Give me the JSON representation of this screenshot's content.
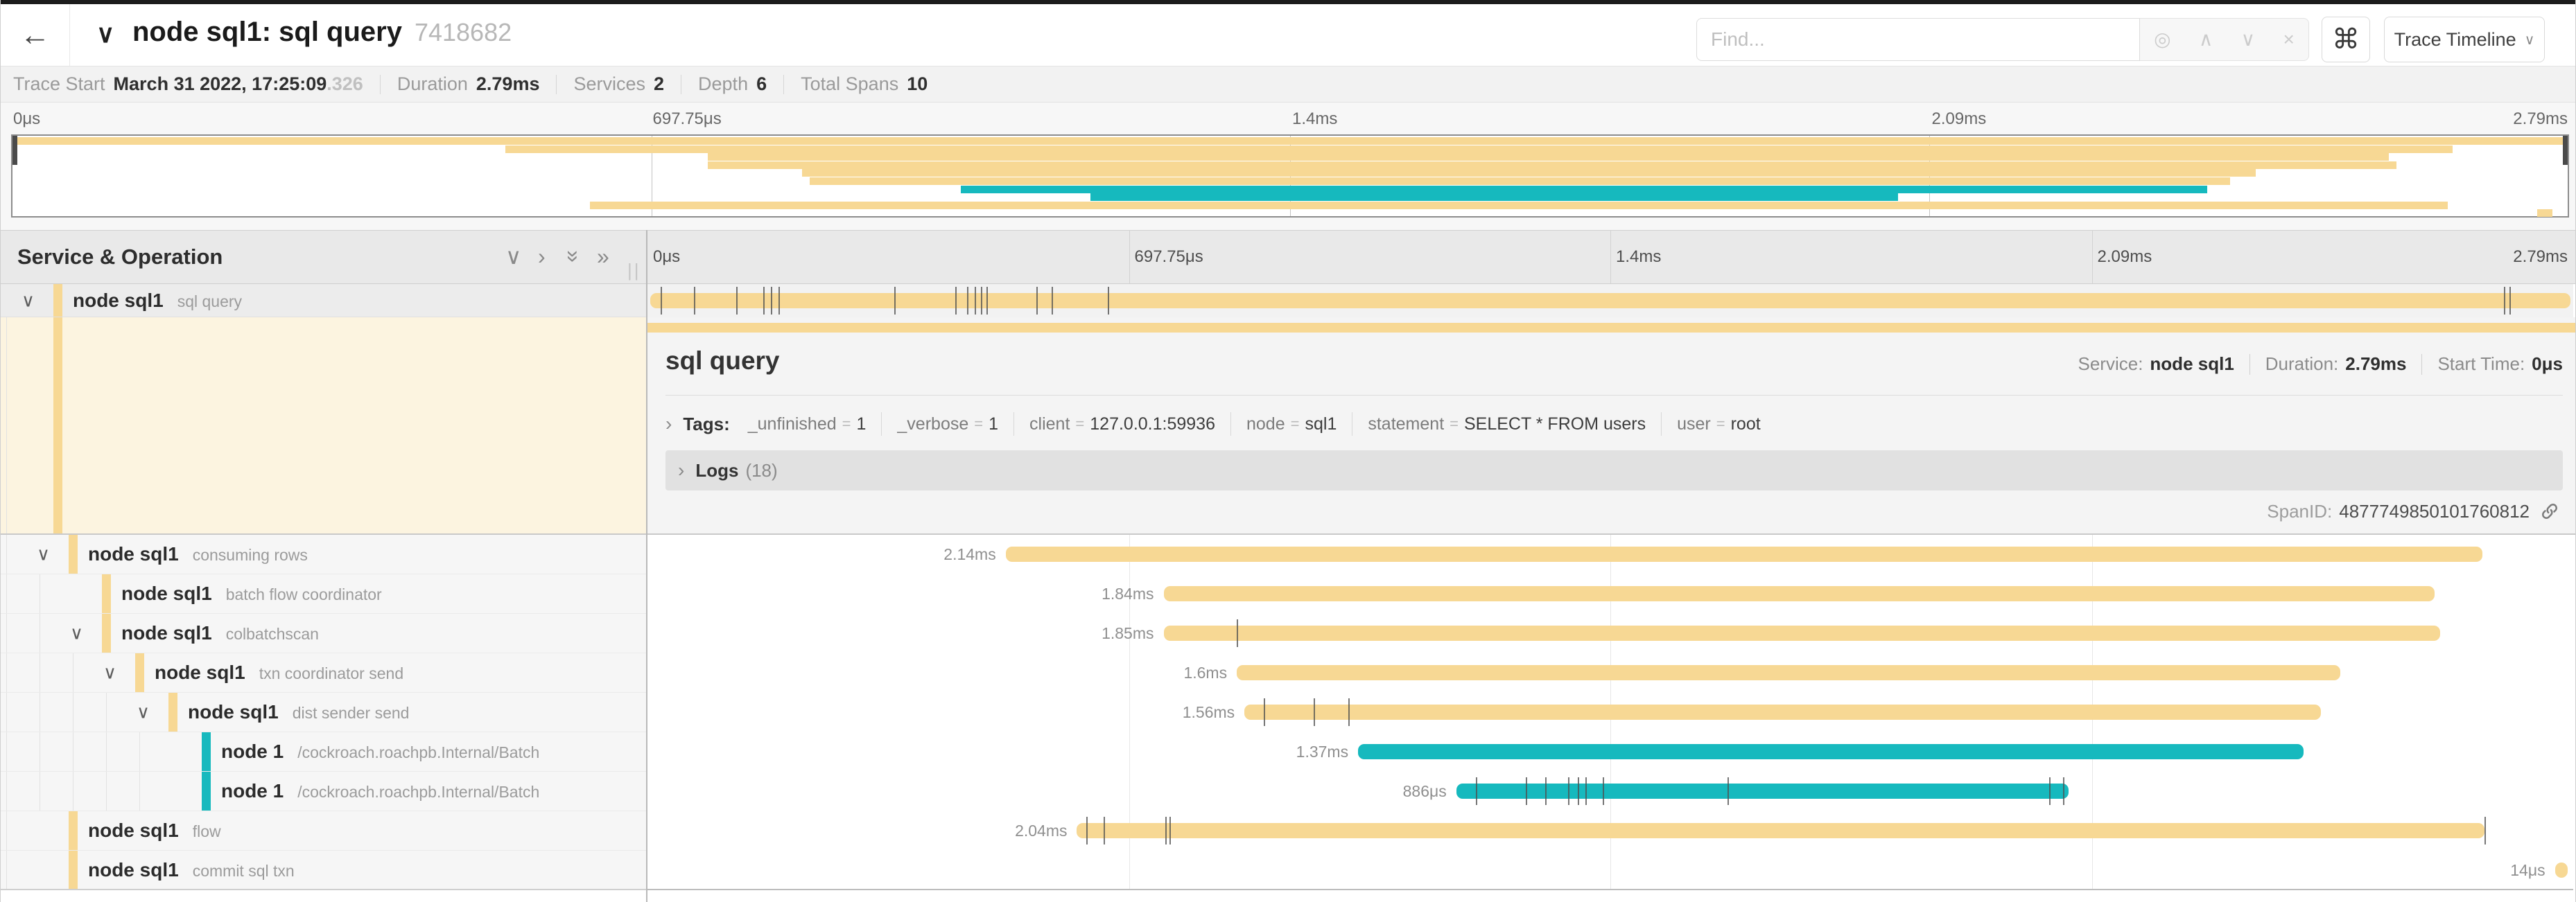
{
  "header": {
    "back_icon": "←",
    "collapser_icon": "∨",
    "title": "node sql1: sql query",
    "trace_id": "7418682",
    "find": {
      "placeholder": "Find...",
      "tool_icons": [
        "◎",
        "∧",
        "∨",
        "×"
      ]
    },
    "shortcut_icon": "⌘",
    "view_button": {
      "label": "Trace Timeline",
      "caret": "∨"
    }
  },
  "summary": {
    "items": [
      {
        "label": "Trace Start",
        "value": "March 31 2022, 17:25:09",
        "suffix": ".326"
      },
      {
        "label": "Duration",
        "value": "2.79ms"
      },
      {
        "label": "Services",
        "value": "2"
      },
      {
        "label": "Depth",
        "value": "6"
      },
      {
        "label": "Total Spans",
        "value": "10"
      }
    ]
  },
  "timeline": {
    "ticks": [
      {
        "label": "0μs",
        "pct": 0
      },
      {
        "label": "697.75μs",
        "pct": 25
      },
      {
        "label": "1.4ms",
        "pct": 50
      },
      {
        "label": "2.09ms",
        "pct": 75
      },
      {
        "label": "2.79ms",
        "pct": 100
      }
    ]
  },
  "minimap": {
    "rows": [
      {
        "start": 0,
        "end": 100,
        "color": "yellow"
      },
      {
        "start": 19.3,
        "end": 95.5,
        "color": "yellow"
      },
      {
        "start": 27.2,
        "end": 93.0,
        "color": "yellow"
      },
      {
        "start": 27.2,
        "end": 93.3,
        "color": "yellow"
      },
      {
        "start": 30.9,
        "end": 87.8,
        "color": "yellow"
      },
      {
        "start": 31.2,
        "end": 86.8,
        "color": "yellow"
      },
      {
        "start": 37.1,
        "end": 85.9,
        "color": "teal"
      },
      {
        "start": 42.2,
        "end": 73.8,
        "color": "teal"
      },
      {
        "start": 22.6,
        "end": 95.3,
        "color": "yellow"
      },
      {
        "start": 98.8,
        "end": 99.4,
        "color": "yellow"
      }
    ]
  },
  "left_panel": {
    "title": "Service & Operation",
    "collapse_icons": [
      "∨",
      "›",
      "»",
      "»"
    ],
    "grip": "||"
  },
  "spans": [
    {
      "service": "node sql1",
      "operation": "sql query",
      "depth": 0,
      "color": "yellow",
      "expandable": true,
      "selected": true,
      "duration_label": "",
      "bar": {
        "start": 0.15,
        "width": 99.7
      },
      "ticks": [
        0.7,
        2.4,
        4.6,
        6.0,
        6.4,
        6.8,
        12.8,
        16.0,
        16.6,
        17.0,
        17.3,
        17.6,
        20.2,
        21.0,
        23.9,
        96.4,
        96.7
      ]
    },
    {
      "service": "node sql1",
      "operation": "consuming rows",
      "depth": 1,
      "color": "yellow",
      "expandable": true,
      "duration_label": "2.14ms",
      "bar": {
        "start": 18.6,
        "width": 76.7
      },
      "ticks": []
    },
    {
      "service": "node sql1",
      "operation": "batch flow coordinator",
      "depth": 2,
      "color": "yellow",
      "expandable": false,
      "duration_label": "1.84ms",
      "bar": {
        "start": 26.8,
        "width": 66.0
      },
      "ticks": []
    },
    {
      "service": "node sql1",
      "operation": "colbatchscan",
      "depth": 2,
      "color": "yellow",
      "expandable": true,
      "duration_label": "1.85ms",
      "bar": {
        "start": 26.8,
        "width": 66.3
      },
      "ticks": [
        30.6
      ]
    },
    {
      "service": "node sql1",
      "operation": "txn coordinator send",
      "depth": 3,
      "color": "yellow",
      "expandable": true,
      "duration_label": "1.6ms",
      "bar": {
        "start": 30.6,
        "width": 57.3
      },
      "ticks": []
    },
    {
      "service": "node sql1",
      "operation": "dist sender send",
      "depth": 4,
      "color": "yellow",
      "expandable": true,
      "duration_label": "1.56ms",
      "bar": {
        "start": 31.0,
        "width": 55.9
      },
      "ticks": [
        32.0,
        34.6,
        36.4
      ]
    },
    {
      "service": "node 1",
      "operation": "/cockroach.roachpb.Internal/Batch",
      "depth": 5,
      "color": "teal",
      "expandable": false,
      "duration_label": "1.37ms",
      "bar": {
        "start": 36.9,
        "width": 49.1
      },
      "ticks": []
    },
    {
      "service": "node 1",
      "operation": "/cockroach.roachpb.Internal/Batch",
      "depth": 5,
      "color": "teal",
      "expandable": false,
      "duration_label": "886μs",
      "bar": {
        "start": 42.0,
        "width": 31.8
      },
      "ticks": [
        43.0,
        45.6,
        46.6,
        47.8,
        48.3,
        48.7,
        49.6,
        56.1,
        72.8,
        73.5
      ]
    },
    {
      "service": "node sql1",
      "operation": "flow",
      "depth": 1,
      "color": "yellow",
      "expandable": false,
      "duration_label": "2.04ms",
      "bar": {
        "start": 22.3,
        "width": 73.1
      },
      "ticks": [
        22.8,
        23.7,
        26.9,
        27.1,
        95.4
      ]
    },
    {
      "service": "node sql1",
      "operation": "commit sql txn",
      "depth": 1,
      "color": "yellow",
      "expandable": false,
      "duration_label": "14μs",
      "bar": {
        "start": 99.05,
        "width": 0.65
      },
      "ticks": []
    }
  ],
  "detail": {
    "title": "sql query",
    "meta": [
      {
        "label": "Service:",
        "value": "node sql1"
      },
      {
        "label": "Duration:",
        "value": "2.79ms"
      },
      {
        "label": "Start Time:",
        "value": "0μs"
      }
    ],
    "tags_title": "Tags:",
    "tags": [
      {
        "key": "_unfinished",
        "value": "1"
      },
      {
        "key": "_verbose",
        "value": "1"
      },
      {
        "key": "client",
        "value": "127.0.0.1:59936"
      },
      {
        "key": "node",
        "value": "sql1"
      },
      {
        "key": "statement",
        "value": "SELECT * FROM users"
      },
      {
        "key": "user",
        "value": "root"
      }
    ],
    "logs_title": "Logs",
    "logs_count": "(18)",
    "spanid_label": "SpanID:",
    "spanid_value": "4877749850101760812"
  },
  "colors": {
    "yellow": "#f7d894",
    "teal": "#16b9be"
  }
}
